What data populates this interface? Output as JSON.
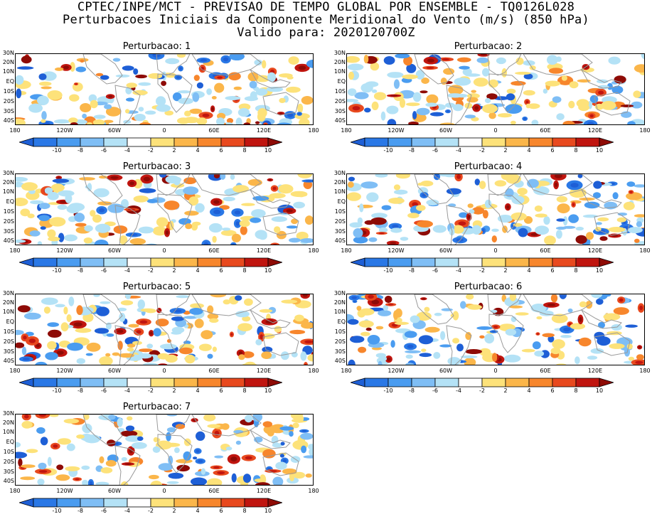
{
  "header": {
    "line1": "CPTEC/INPE/MCT - PREVISAO DE TEMPO GLOBAL POR ENSEMBLE - TQ0126L028",
    "line2": "Perturbacoes Iniciais da Componente Meridional do Vento (m/s) (850 hPa)",
    "line3": "Valido para: 2020120700Z"
  },
  "panels": [
    {
      "title": "Perturbacao: 1",
      "seed": 11
    },
    {
      "title": "Perturbacao: 2",
      "seed": 23
    },
    {
      "title": "Perturbacao: 3",
      "seed": 37
    },
    {
      "title": "Perturbacao: 4",
      "seed": 41
    },
    {
      "title": "Perturbacao: 5",
      "seed": 53
    },
    {
      "title": "Perturbacao: 6",
      "seed": 67
    },
    {
      "title": "Perturbacao: 7",
      "seed": 79
    }
  ],
  "lat_labels": [
    "30N",
    "20N",
    "10N",
    "EQ",
    "10S",
    "20S",
    "30S",
    "40S"
  ],
  "lon_labels": [
    "180",
    "120W",
    "60W",
    "0",
    "60E",
    "120E",
    "180"
  ],
  "colorbar": {
    "labels": [
      "-10",
      "-8",
      "-6",
      "-4",
      "-2",
      "2",
      "4",
      "6",
      "8",
      "10"
    ],
    "colors": [
      "#1e5fd6",
      "#2a78e6",
      "#4a9cf0",
      "#7fbef5",
      "#b4e2f6",
      "#ffffff",
      "#fde27a",
      "#fbb64a",
      "#f7862c",
      "#e8491e",
      "#c0150f",
      "#8e0b06"
    ]
  }
}
